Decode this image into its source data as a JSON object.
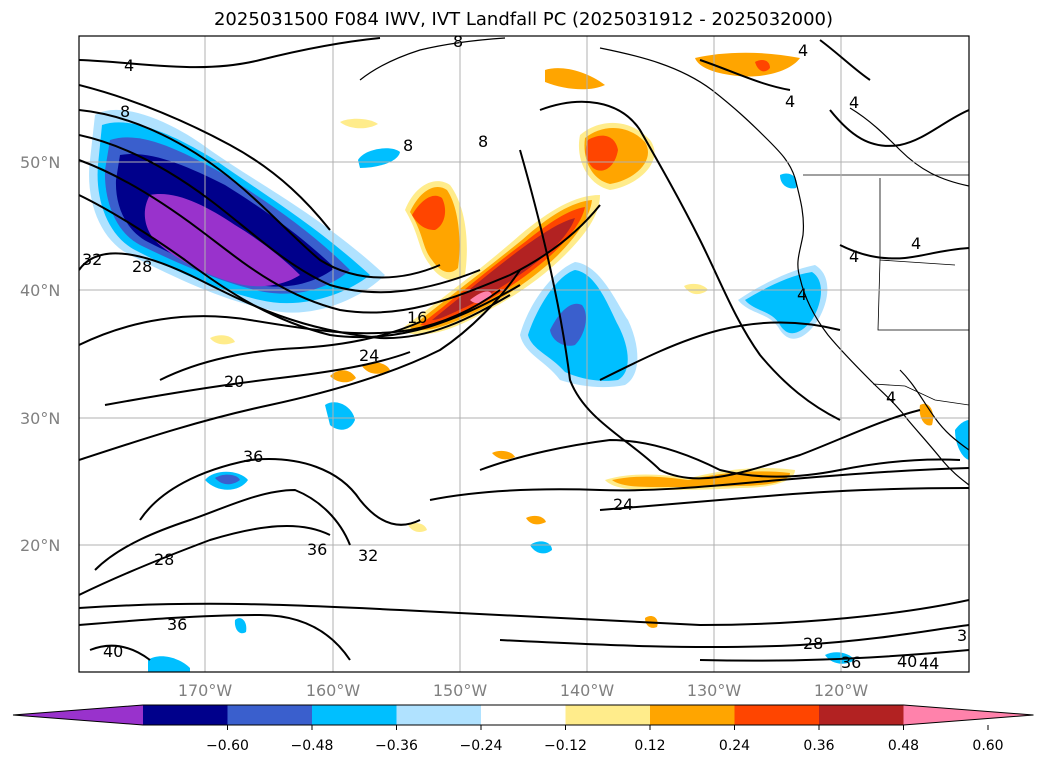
{
  "title": "2025031500 F084 IWV, IVT Landfall PC (2025031912 - 2025032000)",
  "map": {
    "lat_labels": [
      "50°N",
      "40°N",
      "30°N",
      "20°N"
    ],
    "lon_labels": [
      "170°W",
      "160°W",
      "150°W",
      "140°W",
      "130°W",
      "120°W"
    ],
    "contour_labels": [
      "4",
      "8",
      "8",
      "8",
      "8",
      "4",
      "4",
      "4",
      "4",
      "4",
      "4",
      "4",
      "32",
      "28",
      "16",
      "24",
      "20",
      "36",
      "36",
      "32",
      "28",
      "24",
      "36",
      "40",
      "28",
      "36",
      "40",
      "44",
      "3"
    ]
  },
  "colorbar": {
    "ticks": [
      "−0.60",
      "−0.48",
      "−0.36",
      "−0.24",
      "−0.12",
      "0.12",
      "0.24",
      "0.36",
      "0.48",
      "0.60"
    ],
    "colors": [
      "#9932CC",
      "#00008B",
      "#3A5FCD",
      "#00BFFF",
      "#B0E2FF",
      "#FFFFFF",
      "#FFEC8B",
      "#FFA500",
      "#FF4500",
      "#B22222",
      "#FF82AB"
    ]
  }
}
